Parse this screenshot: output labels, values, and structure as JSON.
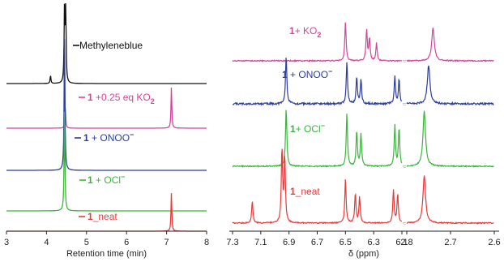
{
  "colors": {
    "black": "#111111",
    "magenta": "#d4449c",
    "blue": "#2b3c9c",
    "green": "#3cb43c",
    "red": "#e83a3a",
    "axis": "#222222"
  },
  "chart_data": [
    {
      "type": "line",
      "title": "",
      "xlabel": "Retention time (min)",
      "ylabel": "",
      "xlim": [
        3,
        8
      ],
      "x_ticks": [
        "3",
        "4",
        "5",
        "6",
        "7",
        "8"
      ],
      "grid": false,
      "series": [
        {
          "name": "Methyleneblue",
          "color": "#111111",
          "peaks": [
            {
              "x": 4.1,
              "height": 0.12
            },
            {
              "x": 4.45,
              "height": 1.0
            },
            {
              "x": 4.48,
              "height": 0.95
            }
          ]
        },
        {
          "name": "1 +0.25 eq KO2",
          "color": "#d4449c",
          "peaks": [
            {
              "x": 4.47,
              "height": 0.55
            },
            {
              "x": 7.12,
              "height": 1.0
            }
          ]
        },
        {
          "name": "1 + ONOO-",
          "color": "#2b3c9c",
          "peaks": [
            {
              "x": 4.45,
              "height": 1.0
            }
          ]
        },
        {
          "name": "1 + OCl-",
          "color": "#3cb43c",
          "peaks": [
            {
              "x": 4.45,
              "height": 1.0
            }
          ]
        },
        {
          "name": "1_neat",
          "color": "#e83a3a",
          "peaks": [
            {
              "x": 7.12,
              "height": 1.0
            }
          ]
        }
      ],
      "labels": [
        {
          "prefix": "",
          "text": "Methyleneblue",
          "sup": "",
          "sub": "",
          "color": "#111111"
        },
        {
          "prefix": "1",
          "text": " +0.25 eq KO",
          "sup": "",
          "sub": "2",
          "color": "#d4449c"
        },
        {
          "prefix": "1",
          "text": " + ONOO",
          "sup": "−",
          "sub": "",
          "color": "#2b3c9c"
        },
        {
          "prefix": "1",
          "text": " + OCl",
          "sup": "−",
          "sub": "",
          "color": "#3cb43c"
        },
        {
          "prefix": "1",
          "text": "_neat",
          "sup": "",
          "sub": "",
          "color": "#e83a3a"
        }
      ]
    },
    {
      "type": "line",
      "title": "",
      "xlabel": "δ (ppm)",
      "ylabel": "",
      "x_axis_broken": true,
      "x_ticks": [
        "7.3",
        "7.1",
        "6.9",
        "6.7",
        "6.5",
        "6.3",
        "6.1",
        "2.8",
        "2.7",
        "2.6"
      ],
      "grid": false,
      "series": [
        {
          "name": "1+ KO2",
          "color": "#d4449c",
          "peaks": [
            {
              "x": 6.5,
              "height": 1.0
            },
            {
              "x": 6.35,
              "height": 0.8
            },
            {
              "x": 6.33,
              "height": 0.55
            },
            {
              "x": 6.28,
              "height": 0.45
            },
            {
              "x": 2.74,
              "height": 0.85
            }
          ]
        },
        {
          "name": "1+ ONOO-",
          "color": "#2b3c9c",
          "peaks": [
            {
              "x": 6.92,
              "height": 1.0
            },
            {
              "x": 6.49,
              "height": 0.85
            },
            {
              "x": 6.42,
              "height": 0.55
            },
            {
              "x": 6.39,
              "height": 0.5
            },
            {
              "x": 6.15,
              "height": 0.55
            },
            {
              "x": 6.12,
              "height": 0.5
            },
            {
              "x": 2.75,
              "height": 0.8
            }
          ]
        },
        {
          "name": "1+ OCl-",
          "color": "#3cb43c",
          "peaks": [
            {
              "x": 6.92,
              "height": 1.0
            },
            {
              "x": 6.49,
              "height": 0.9
            },
            {
              "x": 6.42,
              "height": 0.6
            },
            {
              "x": 6.39,
              "height": 0.55
            },
            {
              "x": 6.15,
              "height": 0.7
            },
            {
              "x": 6.12,
              "height": 0.65
            },
            {
              "x": 2.76,
              "height": 0.95
            }
          ]
        },
        {
          "name": "1_neat",
          "color": "#e83a3a",
          "peaks": [
            {
              "x": 7.16,
              "height": 0.3
            },
            {
              "x": 6.95,
              "height": 1.0
            },
            {
              "x": 6.93,
              "height": 0.9
            },
            {
              "x": 6.5,
              "height": 0.6
            },
            {
              "x": 6.43,
              "height": 0.4
            },
            {
              "x": 6.4,
              "height": 0.35
            },
            {
              "x": 6.16,
              "height": 0.45
            },
            {
              "x": 6.13,
              "height": 0.4
            },
            {
              "x": 2.76,
              "height": 0.65
            }
          ]
        }
      ],
      "labels": [
        {
          "prefix": "1",
          "text": "+ KO",
          "sup": "",
          "sub": "2",
          "color": "#d4449c"
        },
        {
          "prefix": "1",
          "text": " + ONOO",
          "sup": "−",
          "sub": "",
          "color": "#2b3c9c"
        },
        {
          "prefix": "1",
          "text": "+  OCl",
          "sup": "−",
          "sub": "",
          "color": "#3cb43c"
        },
        {
          "prefix": "1",
          "text": "_neat",
          "sup": "",
          "sub": "",
          "color": "#e83a3a"
        }
      ]
    }
  ]
}
